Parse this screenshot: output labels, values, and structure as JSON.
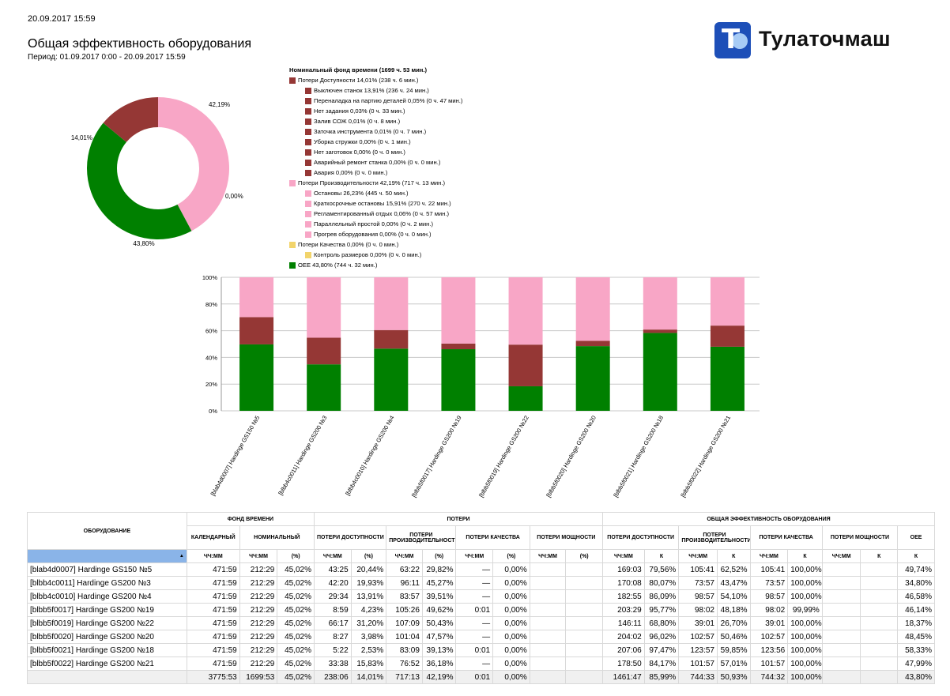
{
  "header": {
    "datetime": "20.09.2017 15:59",
    "title": "Общая эффективность оборудования",
    "period": "Период: 01.09.2017 0:00 - 20.09.2017 15:59",
    "logo_text": "Тулаточмаш"
  },
  "colors": {
    "availability": "#953735",
    "performance": "#f8a6c6",
    "quality": "#f2d46b",
    "oee": "#008000"
  },
  "donut": {
    "labels": {
      "performance": "42,19%",
      "availability": "14,01%",
      "quality": "0,00%",
      "oee": "43,80%"
    },
    "values": {
      "performance": 42.19,
      "availability": 14.01,
      "quality": 0.0,
      "oee": 43.8
    }
  },
  "legend": [
    {
      "text": "Номинальный фонд времени (1699 ч. 53 мин.)",
      "level": 0,
      "color": "",
      "bold": true
    },
    {
      "text": "Потери Доступности 14,01% (238 ч. 6 мин.)",
      "level": 0,
      "color": "#953735"
    },
    {
      "text": "Выключен станок 13,91% (236 ч. 24 мин.)",
      "level": 1,
      "color": "#953735"
    },
    {
      "text": "Переналадка на партию деталей 0,05% (0 ч. 47 мин.)",
      "level": 1,
      "color": "#953735"
    },
    {
      "text": "Нет задания 0,03% (0 ч. 33 мин.)",
      "level": 1,
      "color": "#953735"
    },
    {
      "text": "Залив СОЖ 0,01% (0 ч. 8 мин.)",
      "level": 1,
      "color": "#953735"
    },
    {
      "text": "Заточка инструмента 0,01% (0 ч. 7 мин.)",
      "level": 1,
      "color": "#953735"
    },
    {
      "text": "Уборка стружки 0,00% (0 ч. 1 мин.)",
      "level": 1,
      "color": "#953735"
    },
    {
      "text": "Нет заготовок 0,00% (0 ч. 0 мин.)",
      "level": 1,
      "color": "#953735"
    },
    {
      "text": "Аварийный ремонт станка 0,00% (0 ч. 0 мин.)",
      "level": 1,
      "color": "#953735"
    },
    {
      "text": "Авария 0,00% (0 ч. 0 мин.)",
      "level": 1,
      "color": "#953735"
    },
    {
      "text": "Потери Производительности 42,19% (717 ч. 13 мин.)",
      "level": 0,
      "color": "#f8a6c6"
    },
    {
      "text": "Остановы 26,23% (445 ч. 50 мин.)",
      "level": 1,
      "color": "#f8a6c6"
    },
    {
      "text": "Краткосрочные остановы 15,91% (270 ч. 22 мин.)",
      "level": 1,
      "color": "#f8a6c6"
    },
    {
      "text": "Регламентированный отдых 0,06% (0 ч. 57 мин.)",
      "level": 1,
      "color": "#f8a6c6"
    },
    {
      "text": "Параллельный простой 0,00% (0 ч. 2 мин.)",
      "level": 1,
      "color": "#f8a6c6"
    },
    {
      "text": "Прогрев оборудования 0,00% (0 ч. 0 мин.)",
      "level": 1,
      "color": "#f8a6c6"
    },
    {
      "text": "Потери Качества 0,00% (0 ч. 0 мин.)",
      "level": 0,
      "color": "#f2d46b"
    },
    {
      "text": "Контроль размеров 0,00% (0 ч. 0 мин.)",
      "level": 1,
      "color": "#f2d46b"
    },
    {
      "text": "OEE 43,80% (744 ч. 32 мин.)",
      "level": 0,
      "color": "#008000"
    }
  ],
  "chart_data": {
    "type": "bar",
    "stacked": true,
    "ylim": [
      0,
      100
    ],
    "yticks": [
      "0%",
      "20%",
      "40%",
      "60%",
      "80%",
      "100%"
    ],
    "categories": [
      "[blab4d0007] Hardinge GS150 №5",
      "[blbb4c0011] Hardinge GS200 №3",
      "[blbb4c0010] Hardinge GS200 №4",
      "[blbb5f0017] Hardinge GS200 №19",
      "[blbb5f0019] Hardinge GS200 №22",
      "[blbb5f0020] Hardinge GS200 №20",
      "[blbb5f0021] Hardinge GS200 №18",
      "[blbb5f0022] Hardinge GS200 №21"
    ],
    "series": [
      {
        "name": "OEE",
        "color": "#008000",
        "values": [
          49.74,
          34.8,
          46.58,
          46.14,
          18.37,
          48.45,
          58.33,
          47.99
        ]
      },
      {
        "name": "Потери Доступности",
        "color": "#953735",
        "values": [
          20.44,
          19.93,
          13.91,
          4.23,
          31.2,
          3.98,
          2.53,
          15.83
        ]
      },
      {
        "name": "Потери Производительности",
        "color": "#f8a6c6",
        "values": [
          29.82,
          45.27,
          39.51,
          49.62,
          50.43,
          47.57,
          39.13,
          36.18
        ]
      }
    ]
  },
  "table": {
    "headers": {
      "equipment": "ОБОРУДОВАНИЕ",
      "time_fund": "ФОНД ВРЕМЕНИ",
      "losses": "ПОТЕРИ",
      "oee_group": "ОБЩАЯ ЭФФЕКТИВНОСТЬ ОБОРУДОВАНИЯ",
      "calendar": "КАЛЕНДАРНЫЙ",
      "nominal": "НОМИНАЛЬНЫЙ",
      "l_avail": "ПОТЕРИ ДОСТУПНОСТИ",
      "l_perf": "ПОТЕРИ ПРОИЗВОДИТЕЛЬНОСТИ",
      "l_qual": "ПОТЕРИ КАЧЕСТВА",
      "l_power": "ПОТЕРИ МОЩНОСТИ",
      "o_avail": "ПОТЕРИ ДОСТУПНОСТИ",
      "o_perf": "ПОТЕРИ ПРОИЗВОДИТЕЛЬНОСТИ",
      "o_qual": "ПОТЕРИ КАЧЕСТВА",
      "o_power": "ПОТЕРИ МОЩНОСТИ",
      "oee": "OEE",
      "units": [
        "ЧЧ:ММ",
        "ЧЧ:ММ",
        "(%)",
        "ЧЧ:ММ",
        "(%)",
        "ЧЧ:ММ",
        "(%)",
        "ЧЧ:ММ",
        "(%)",
        "ЧЧ:ММ",
        "(%)",
        "ЧЧ:ММ",
        "К",
        "ЧЧ:ММ",
        "К",
        "ЧЧ:ММ",
        "К",
        "ЧЧ:ММ",
        "К",
        "К"
      ]
    },
    "rows": [
      [
        "[blab4d0007] Hardinge GS150 №5",
        "471:59",
        "212:29",
        "45,02%",
        "43:25",
        "20,44%",
        "63:22",
        "29,82%",
        "—",
        "0,00%",
        "",
        "",
        "169:03",
        "79,56%",
        "105:41",
        "62,52%",
        "105:41",
        "100,00%",
        "",
        "",
        "49,74%"
      ],
      [
        "[blbb4c0011] Hardinge GS200 №3",
        "471:59",
        "212:29",
        "45,02%",
        "42:20",
        "19,93%",
        "96:11",
        "45,27%",
        "—",
        "0,00%",
        "",
        "",
        "170:08",
        "80,07%",
        "73:57",
        "43,47%",
        "73:57",
        "100,00%",
        "",
        "",
        "34,80%"
      ],
      [
        "[blbb4c0010] Hardinge GS200 №4",
        "471:59",
        "212:29",
        "45,02%",
        "29:34",
        "13,91%",
        "83:57",
        "39,51%",
        "—",
        "0,00%",
        "",
        "",
        "182:55",
        "86,09%",
        "98:57",
        "54,10%",
        "98:57",
        "100,00%",
        "",
        "",
        "46,58%"
      ],
      [
        "[blbb5f0017] Hardinge GS200 №19",
        "471:59",
        "212:29",
        "45,02%",
        "8:59",
        "4,23%",
        "105:26",
        "49,62%",
        "0:01",
        "0,00%",
        "",
        "",
        "203:29",
        "95,77%",
        "98:02",
        "48,18%",
        "98:02",
        "99,99%",
        "",
        "",
        "46,14%"
      ],
      [
        "[blbb5f0019] Hardinge GS200 №22",
        "471:59",
        "212:29",
        "45,02%",
        "66:17",
        "31,20%",
        "107:09",
        "50,43%",
        "—",
        "0,00%",
        "",
        "",
        "146:11",
        "68,80%",
        "39:01",
        "26,70%",
        "39:01",
        "100,00%",
        "",
        "",
        "18,37%"
      ],
      [
        "[blbb5f0020] Hardinge GS200 №20",
        "471:59",
        "212:29",
        "45,02%",
        "8:27",
        "3,98%",
        "101:04",
        "47,57%",
        "—",
        "0,00%",
        "",
        "",
        "204:02",
        "96,02%",
        "102:57",
        "50,46%",
        "102:57",
        "100,00%",
        "",
        "",
        "48,45%"
      ],
      [
        "[blbb5f0021] Hardinge GS200 №18",
        "471:59",
        "212:29",
        "45,02%",
        "5:22",
        "2,53%",
        "83:09",
        "39,13%",
        "0:01",
        "0,00%",
        "",
        "",
        "207:06",
        "97,47%",
        "123:57",
        "59,85%",
        "123:56",
        "100,00%",
        "",
        "",
        "58,33%"
      ],
      [
        "[blbb5f0022] Hardinge GS200 №21",
        "471:59",
        "212:29",
        "45,02%",
        "33:38",
        "15,83%",
        "76:52",
        "36,18%",
        "—",
        "0,00%",
        "",
        "",
        "178:50",
        "84,17%",
        "101:57",
        "57,01%",
        "101:57",
        "100,00%",
        "",
        "",
        "47,99%"
      ]
    ],
    "total": [
      "",
      "3775:53",
      "1699:53",
      "45,02%",
      "238:06",
      "14,01%",
      "717:13",
      "42,19%",
      "0:01",
      "0,00%",
      "",
      "",
      "1461:47",
      "85,99%",
      "744:33",
      "50,93%",
      "744:32",
      "100,00%",
      "",
      "",
      "43,80%"
    ]
  }
}
